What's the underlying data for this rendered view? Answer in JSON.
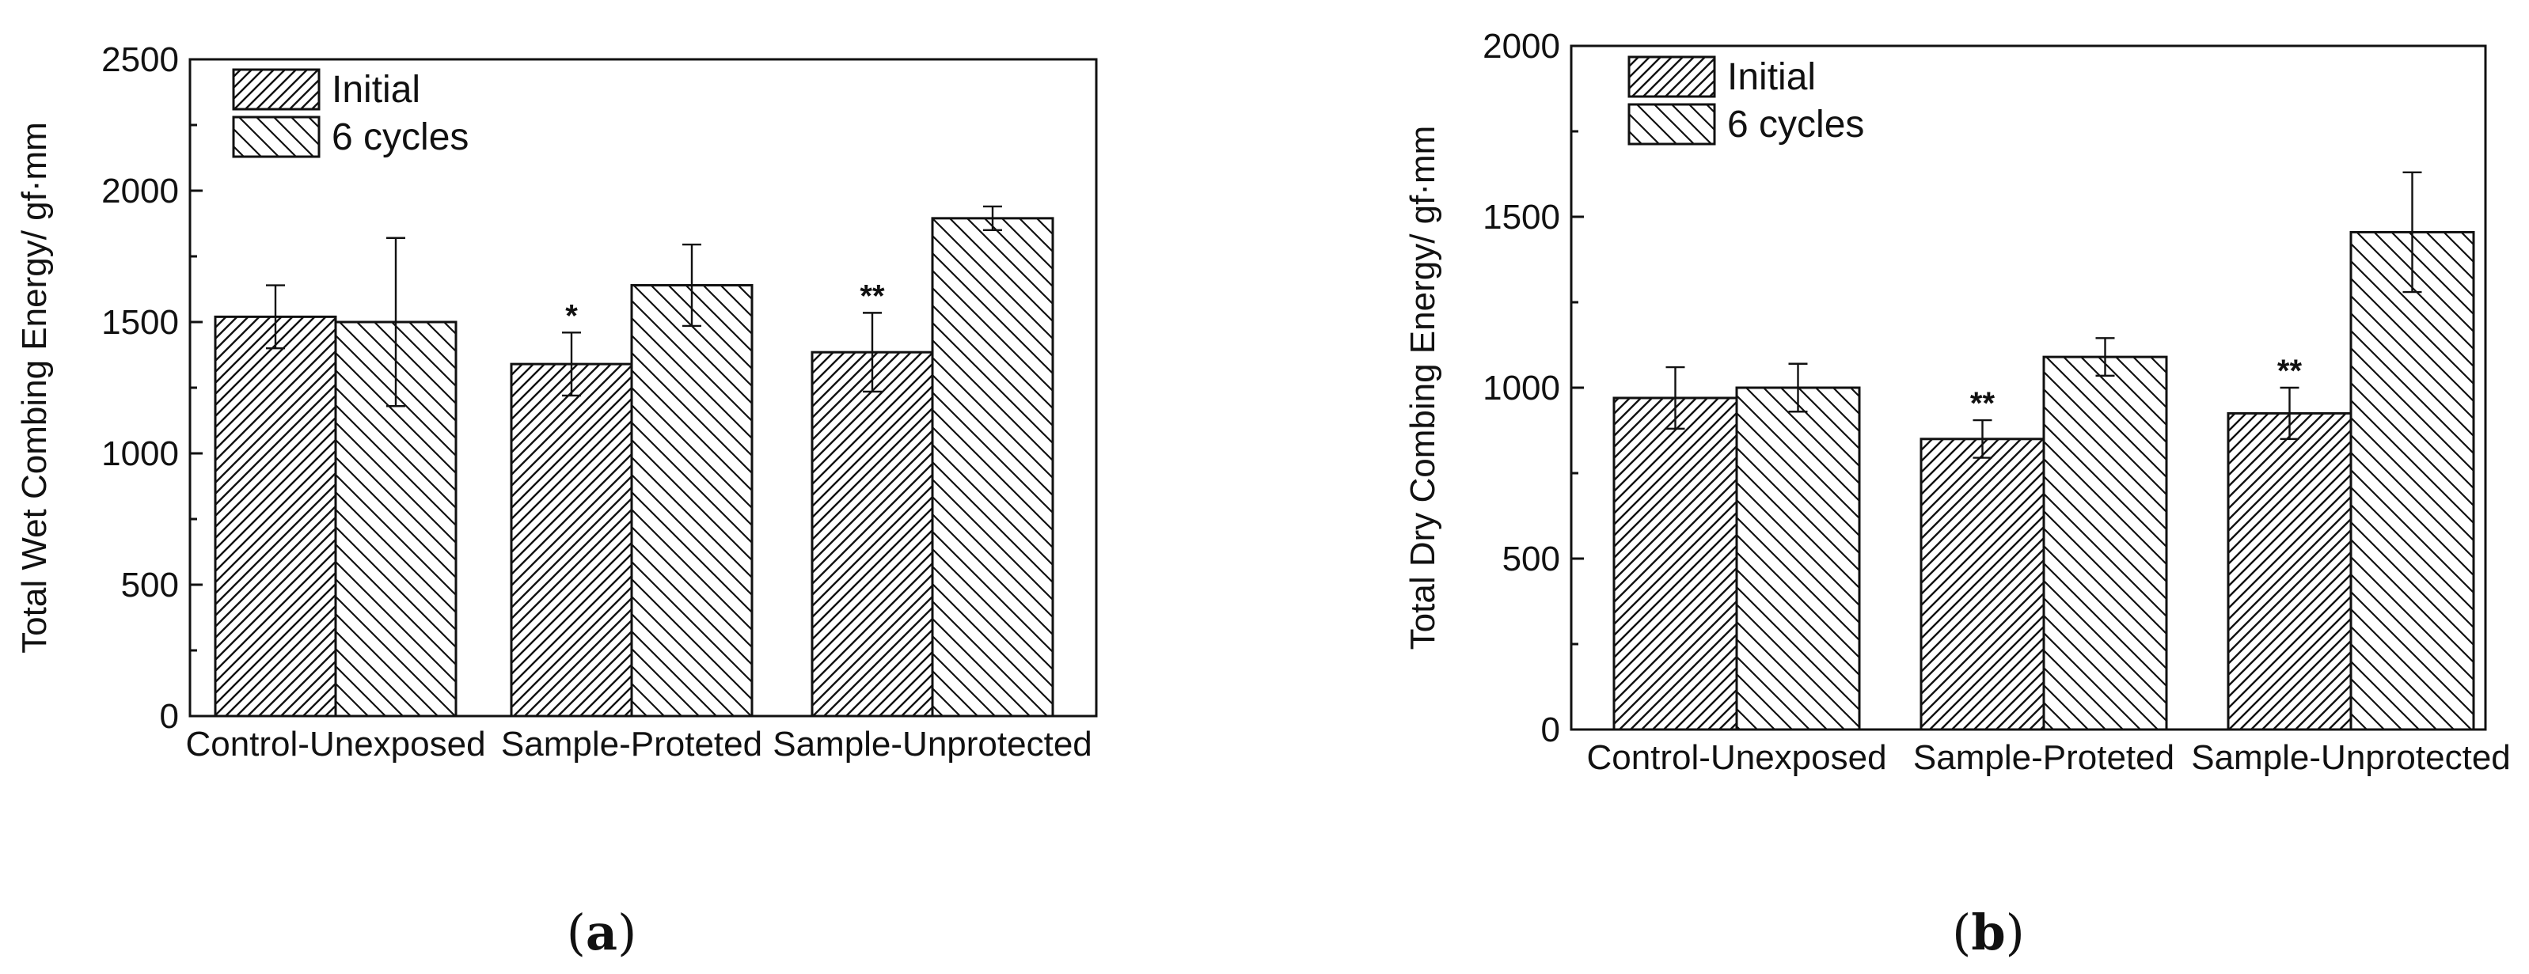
{
  "chart_data": [
    {
      "type": "bar",
      "panel_label": "a",
      "title": "",
      "xlabel": "",
      "ylabel": "Total Wet Combing Energy/ gf·mm",
      "ylim": [
        0,
        2500
      ],
      "yticks": [
        "0",
        "500",
        "1000",
        "1500",
        "2000",
        "2500"
      ],
      "categories": [
        "Control-Unexposed",
        "Sample-Proteted",
        "Sample-Unprotected"
      ],
      "legend_position": "top-left",
      "series": [
        {
          "name": "Initial",
          "pattern": "hatch-forward",
          "values": [
            1520,
            1340,
            1385
          ],
          "errors": [
            120,
            120,
            150
          ],
          "significance": [
            "",
            "*",
            "**"
          ]
        },
        {
          "name": "6 cycles",
          "pattern": "hatch-backward",
          "values": [
            1500,
            1640,
            1895
          ],
          "errors": [
            320,
            155,
            45
          ],
          "significance": [
            "",
            "",
            ""
          ]
        }
      ],
      "grid": false
    },
    {
      "type": "bar",
      "panel_label": "b",
      "title": "",
      "xlabel": "",
      "ylabel": "Total Dry Combing Energy/ gf·mm",
      "ylim": [
        0,
        2000
      ],
      "yticks": [
        "0",
        "500",
        "1000",
        "1500",
        "2000"
      ],
      "categories": [
        "Control-Unexposed",
        "Sample-Proteted",
        "Sample-Unprotected"
      ],
      "legend_position": "top-left",
      "series": [
        {
          "name": "Initial",
          "pattern": "hatch-forward",
          "values": [
            970,
            850,
            925
          ],
          "errors": [
            90,
            55,
            75
          ],
          "significance": [
            "",
            "**",
            "**"
          ]
        },
        {
          "name": "6 cycles",
          "pattern": "hatch-backward",
          "values": [
            1000,
            1090,
            1455
          ],
          "errors": [
            70,
            55,
            175
          ],
          "significance": [
            "",
            "",
            ""
          ]
        }
      ],
      "grid": false
    }
  ]
}
